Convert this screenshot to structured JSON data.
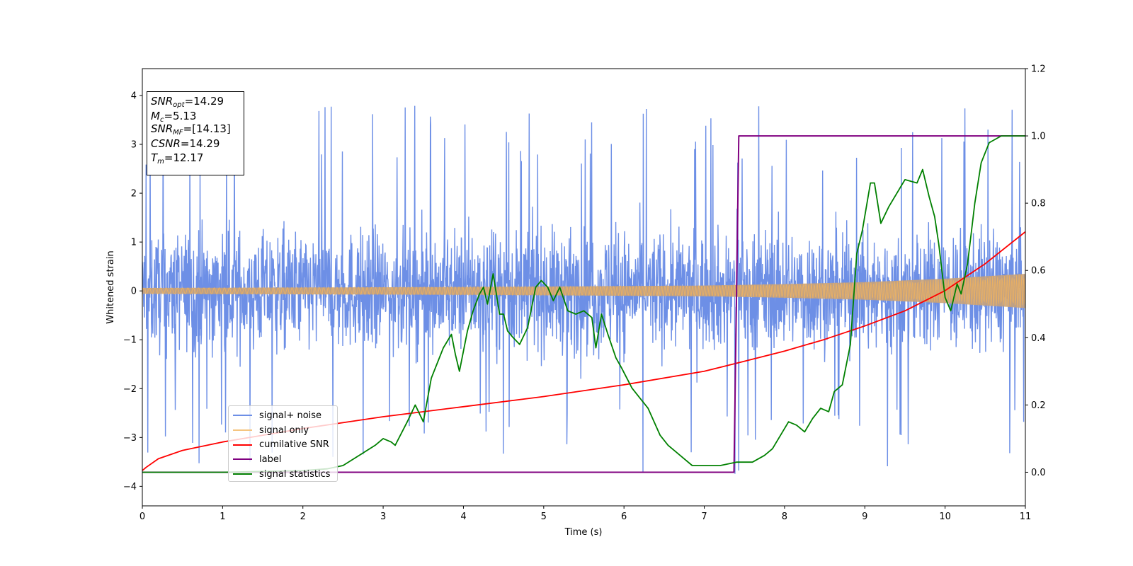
{
  "chart_data": {
    "type": "line",
    "xlabel": "Time (s)",
    "ylabel": "Whitened strain",
    "xlim": [
      0,
      11
    ],
    "ylim": [
      -4.4,
      4.55
    ],
    "y2lim": [
      -0.1,
      1.2
    ],
    "x_ticks": [
      "0",
      "1",
      "2",
      "3",
      "4",
      "5",
      "6",
      "7",
      "8",
      "9",
      "10",
      "11"
    ],
    "y_ticks": [
      "−4",
      "−3",
      "−2",
      "−1",
      "0",
      "1",
      "2",
      "3",
      "4"
    ],
    "y2_ticks": [
      "0.0",
      "0.2",
      "0.4",
      "0.6",
      "0.8",
      "1.0",
      "1.2"
    ],
    "legend": {
      "placement": "lower-left",
      "entries": [
        "signal+ noise",
        "signal only",
        "cumilative SNR",
        "label",
        "signal statistics"
      ]
    },
    "annotation": {
      "snr_opt": "=14.29",
      "mc": "=5.13",
      "snr_mf": "=[14.13]",
      "csnr": "=14.29",
      "tm": "=12.17"
    },
    "series": [
      {
        "name": "signal+ noise",
        "axis": "left",
        "color": "#6d8fe6",
        "description_points": "noise band roughly ±1.5 with spikes up to about 4.2 and down to about -3.9",
        "typical_amplitude": 1.5,
        "peak_max": 4.18,
        "peak_min": -3.9
      },
      {
        "name": "signal only",
        "axis": "left",
        "color": "#f5b45a",
        "envelope_x": [
          0,
          2,
          4,
          6,
          7,
          8,
          9,
          10,
          11
        ],
        "envelope_amplitude": [
          0.06,
          0.07,
          0.08,
          0.1,
          0.11,
          0.14,
          0.18,
          0.25,
          0.35
        ]
      },
      {
        "name": "cumilative SNR",
        "axis": "right",
        "color": "#ff0000",
        "x": [
          0,
          0.05,
          0.2,
          0.5,
          1,
          2,
          3,
          4,
          5,
          6,
          7,
          7.5,
          8,
          8.5,
          9,
          9.5,
          10,
          10.5,
          11
        ],
        "values": [
          0.005,
          0.015,
          0.04,
          0.065,
          0.09,
          0.13,
          0.165,
          0.195,
          0.225,
          0.26,
          0.3,
          0.33,
          0.36,
          0.395,
          0.435,
          0.48,
          0.54,
          0.62,
          0.715
        ]
      },
      {
        "name": "label",
        "axis": "right",
        "color": "#800080",
        "x": [
          0,
          7.37,
          7.43,
          11
        ],
        "values": [
          0.0,
          0.0,
          1.0,
          1.0
        ]
      },
      {
        "name": "signal statistics",
        "axis": "right",
        "color": "#008000",
        "x": [
          0,
          1,
          2,
          2.3,
          2.5,
          2.7,
          2.9,
          3.0,
          3.1,
          3.15,
          3.3,
          3.4,
          3.5,
          3.6,
          3.75,
          3.85,
          3.9,
          3.95,
          4.05,
          4.12,
          4.2,
          4.25,
          4.3,
          4.37,
          4.45,
          4.5,
          4.55,
          4.62,
          4.7,
          4.8,
          4.9,
          4.97,
          5.05,
          5.12,
          5.2,
          5.3,
          5.4,
          5.5,
          5.6,
          5.65,
          5.72,
          5.8,
          5.9,
          5.97,
          6.1,
          6.2,
          6.3,
          6.45,
          6.55,
          6.7,
          6.85,
          7.05,
          7.2,
          7.4,
          7.6,
          7.75,
          7.85,
          8.05,
          8.15,
          8.25,
          8.35,
          8.45,
          8.55,
          8.62,
          8.72,
          8.82,
          8.9,
          8.97,
          9.07,
          9.12,
          9.2,
          9.3,
          9.5,
          9.65,
          9.72,
          9.8,
          9.87,
          9.92,
          10.0,
          10.07,
          10.15,
          10.2,
          10.28,
          10.37,
          10.45,
          10.55,
          10.7,
          11.0
        ],
        "values": [
          0.0,
          0.0,
          0.005,
          0.01,
          0.02,
          0.05,
          0.08,
          0.1,
          0.09,
          0.08,
          0.15,
          0.2,
          0.15,
          0.28,
          0.37,
          0.41,
          0.35,
          0.3,
          0.42,
          0.48,
          0.53,
          0.55,
          0.5,
          0.59,
          0.47,
          0.47,
          0.42,
          0.4,
          0.38,
          0.43,
          0.55,
          0.57,
          0.55,
          0.51,
          0.55,
          0.48,
          0.47,
          0.48,
          0.46,
          0.37,
          0.47,
          0.41,
          0.34,
          0.31,
          0.25,
          0.22,
          0.19,
          0.11,
          0.08,
          0.05,
          0.02,
          0.02,
          0.02,
          0.03,
          0.03,
          0.05,
          0.07,
          0.15,
          0.14,
          0.12,
          0.16,
          0.19,
          0.18,
          0.24,
          0.26,
          0.38,
          0.65,
          0.72,
          0.86,
          0.86,
          0.74,
          0.79,
          0.87,
          0.86,
          0.9,
          0.82,
          0.76,
          0.68,
          0.52,
          0.48,
          0.56,
          0.53,
          0.62,
          0.8,
          0.92,
          0.98,
          1.0,
          1.0
        ]
      }
    ]
  }
}
